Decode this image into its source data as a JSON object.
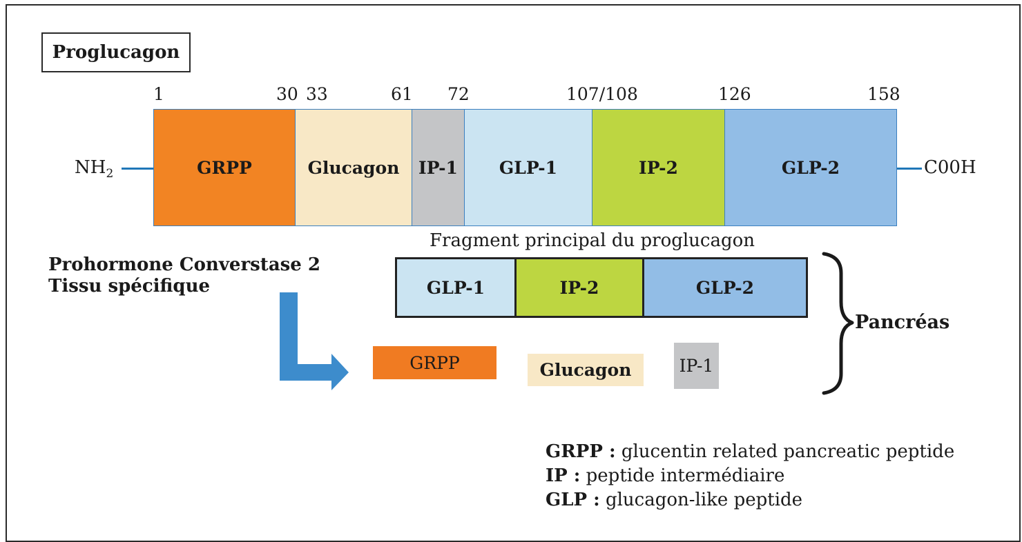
{
  "title": "Proglucagon",
  "positions": [
    "1",
    "30",
    "33",
    "61",
    "72",
    "107/108",
    "126",
    "158"
  ],
  "nh2": {
    "base": "NH",
    "sub": "2"
  },
  "cooh": "C00H",
  "main_segments": [
    {
      "label": "GRPP",
      "color": "#f28423"
    },
    {
      "label": "Glucagon",
      "color": "#f8e8c6"
    },
    {
      "label": "IP-1",
      "color": "#c4c5c7"
    },
    {
      "label": "GLP-1",
      "color": "#cbe4f2"
    },
    {
      "label": "IP-2",
      "color": "#bdd641"
    },
    {
      "label": "GLP-2",
      "color": "#92bde6"
    }
  ],
  "enzyme": {
    "line1": "Prohormone Converstase 2",
    "line2": "Tissu spécifique"
  },
  "fragment_title": "Fragment principal du proglucagon",
  "fragment_segments": [
    {
      "label": "GLP-1",
      "color": "#cbe4f2"
    },
    {
      "label": "IP-2",
      "color": "#bdd641"
    },
    {
      "label": "GLP-2",
      "color": "#92bde6"
    }
  ],
  "pieces": [
    {
      "label": "GRPP",
      "color": "#f07b22"
    },
    {
      "label": "Glucagon",
      "color": "#f8e8c6"
    },
    {
      "label": "IP-1",
      "color": "#c4c5c7"
    }
  ],
  "tissue": "Pancréas",
  "colors": {
    "line": "#1f77b8",
    "arrow": "#3d8ccc",
    "border": "#2a2a2a"
  },
  "legend": [
    {
      "abbr": "GRPP :",
      "text": "glucentin related pancreatic peptide"
    },
    {
      "abbr": "IP :",
      "text": "peptide intermédiaire"
    },
    {
      "abbr": "GLP :",
      "text": "glucagon-like peptide"
    }
  ]
}
